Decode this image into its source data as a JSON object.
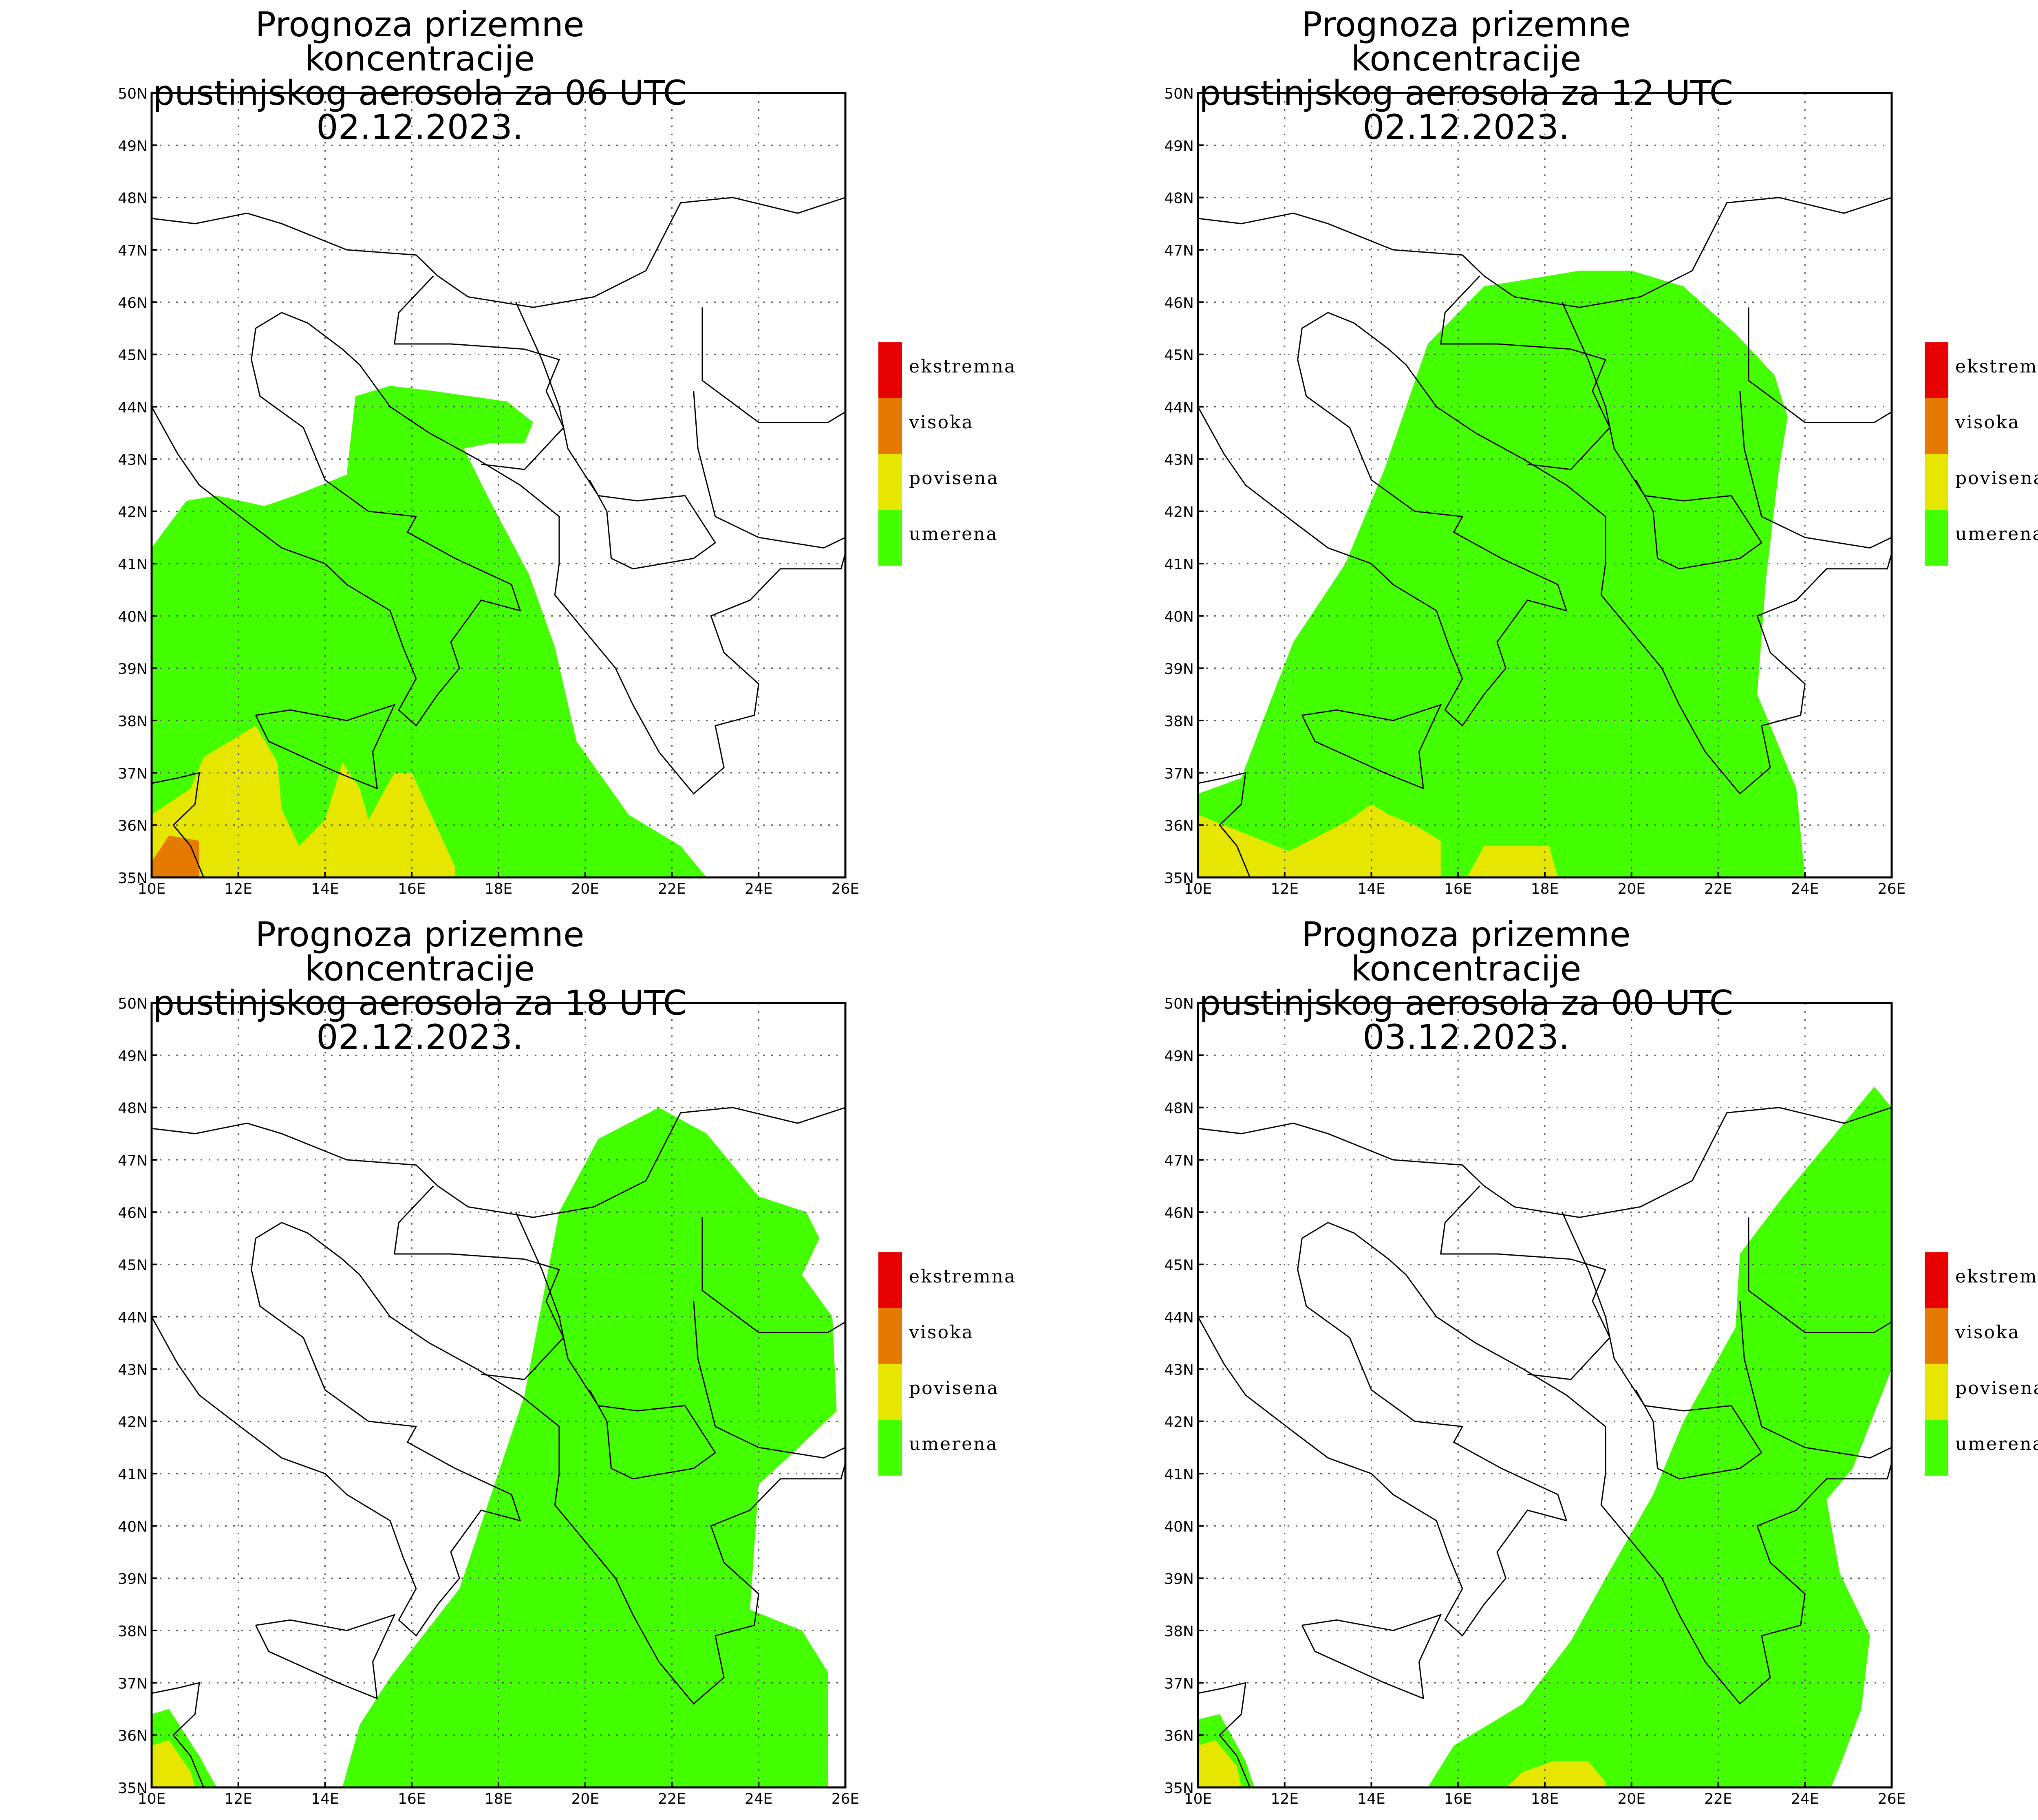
{
  "colors": {
    "ekstremna": "#e60000",
    "visoka": "#e67a00",
    "povisena": "#e6e600",
    "umerena": "#44ff00",
    "grid": "#555555",
    "border": "#000000"
  },
  "legend": [
    {
      "key": "ekstremna",
      "label": "ekstremna"
    },
    {
      "key": "visoka",
      "label": "visoka"
    },
    {
      "key": "povisena",
      "label": "povisena"
    },
    {
      "key": "umerena",
      "label": "umerena"
    }
  ],
  "axes": {
    "lat_labels": [
      "35N",
      "36N",
      "37N",
      "38N",
      "39N",
      "40N",
      "41N",
      "42N",
      "43N",
      "44N",
      "45N",
      "46N",
      "47N",
      "48N",
      "49N",
      "50N"
    ],
    "lon_labels": [
      "10E",
      "12E",
      "14E",
      "16E",
      "18E",
      "20E",
      "22E",
      "24E",
      "26E"
    ]
  },
  "panels": [
    {
      "id": "p06",
      "title_line1": "Prognoza prizemne koncentracije",
      "title_line2": "pustinjskog aerosola za 06 UTC 02.12.2023."
    },
    {
      "id": "p12",
      "title_line1": "Prognoza prizemne koncentracije",
      "title_line2": "pustinjskog aerosola za 12 UTC 02.12.2023."
    },
    {
      "id": "p18",
      "title_line1": "Prognoza prizemne koncentracije",
      "title_line2": "pustinjskog aerosola za 18 UTC 02.12.2023."
    },
    {
      "id": "p00",
      "title_line1": "Prognoza prizemne koncentracije",
      "title_line2": "pustinjskog aerosola za 00 UTC 03.12.2023."
    }
  ],
  "chart_data": {
    "type": "map",
    "lon_range": [
      10,
      26
    ],
    "lat_range": [
      35,
      50
    ],
    "regions": {
      "p06": [
        {
          "level": "umerena",
          "lonlat": [
            [
              10,
              41.3
            ],
            [
              10.8,
              42.2
            ],
            [
              11.5,
              42.3
            ],
            [
              12.6,
              42.1
            ],
            [
              13.3,
              42.3
            ],
            [
              14.5,
              42.7
            ],
            [
              14.7,
              44.2
            ],
            [
              15.5,
              44.4
            ],
            [
              16.5,
              44.3
            ],
            [
              18.2,
              44.1
            ],
            [
              18.8,
              43.7
            ],
            [
              18.6,
              43.3
            ],
            [
              17.8,
              43.3
            ],
            [
              17.2,
              43.2
            ],
            [
              17.8,
              42.2
            ],
            [
              18.7,
              40.8
            ],
            [
              19.3,
              39.4
            ],
            [
              19.8,
              37.6
            ],
            [
              21,
              36.2
            ],
            [
              22.2,
              35.6
            ],
            [
              22.8,
              35
            ]
          ]
        },
        {
          "level": "povisena",
          "lonlat": [
            [
              10,
              36.2
            ],
            [
              10.9,
              36.7
            ],
            [
              11.2,
              37.3
            ],
            [
              12.4,
              37.9
            ],
            [
              12.9,
              37.2
            ],
            [
              13,
              36.3
            ],
            [
              13.4,
              35.6
            ],
            [
              14,
              36.1
            ],
            [
              14.4,
              37.2
            ],
            [
              14.8,
              36.7
            ],
            [
              15,
              36.1
            ],
            [
              15.6,
              37
            ],
            [
              16,
              37
            ],
            [
              17,
              35.2
            ],
            [
              17,
              35
            ]
          ]
        },
        {
          "level": "visoka",
          "lonlat": [
            [
              10,
              35.3
            ],
            [
              10.4,
              35.8
            ],
            [
              11.1,
              35.7
            ],
            [
              11.1,
              35
            ]
          ]
        }
      ],
      "p12": [
        {
          "level": "umerena",
          "lonlat": [
            [
              10,
              36.6
            ],
            [
              11,
              36.9
            ],
            [
              11.5,
              38
            ],
            [
              12.2,
              39.5
            ],
            [
              13.4,
              41
            ],
            [
              14.3,
              42.8
            ],
            [
              15.3,
              45.2
            ],
            [
              16.6,
              46.3
            ],
            [
              18.8,
              46.6
            ],
            [
              20,
              46.6
            ],
            [
              21.2,
              46.3
            ],
            [
              22.4,
              45.4
            ],
            [
              23.3,
              44.6
            ],
            [
              23.6,
              43.8
            ],
            [
              23.4,
              42.8
            ],
            [
              23.1,
              40.7
            ],
            [
              22.9,
              38.5
            ],
            [
              23.8,
              36.7
            ],
            [
              24,
              35
            ]
          ]
        },
        {
          "level": "povisena",
          "lonlat": [
            [
              10,
              36.2
            ],
            [
              10.9,
              35.9
            ],
            [
              12.1,
              35.5
            ],
            [
              13.5,
              36.1
            ],
            [
              14,
              36.4
            ],
            [
              14.4,
              36.2
            ],
            [
              15,
              36
            ],
            [
              15.6,
              35.7
            ],
            [
              15.6,
              35
            ]
          ]
        },
        {
          "level": "povisena",
          "lonlat": [
            [
              16.2,
              35
            ],
            [
              16.6,
              35.6
            ],
            [
              18.1,
              35.6
            ],
            [
              18.3,
              35
            ]
          ]
        }
      ],
      "p18": [
        {
          "level": "umerena",
          "lonlat": [
            [
              10,
              36.4
            ],
            [
              10.4,
              36.5
            ],
            [
              11.1,
              35.6
            ],
            [
              11.5,
              35
            ]
          ]
        },
        {
          "level": "umerena",
          "lonlat": [
            [
              14.4,
              35
            ],
            [
              14.8,
              36.2
            ],
            [
              15.5,
              37.1
            ],
            [
              17.1,
              38.8
            ],
            [
              18.6,
              42.5
            ],
            [
              19.4,
              46
            ],
            [
              20.3,
              47.4
            ],
            [
              21.7,
              48
            ],
            [
              22.8,
              47.5
            ],
            [
              24,
              46.3
            ],
            [
              25.1,
              46
            ],
            [
              25.4,
              45.5
            ],
            [
              25,
              44.8
            ],
            [
              25.7,
              44
            ],
            [
              25.8,
              42.2
            ],
            [
              24.8,
              41.4
            ],
            [
              24,
              40.8
            ],
            [
              23.8,
              38.4
            ],
            [
              25,
              38
            ],
            [
              25.6,
              37.2
            ],
            [
              25.6,
              35
            ]
          ]
        },
        {
          "level": "povisena",
          "lonlat": [
            [
              10,
              35.8
            ],
            [
              10.4,
              35.9
            ],
            [
              10.9,
              35.3
            ],
            [
              11,
              35
            ]
          ]
        }
      ],
      "p00": [
        {
          "level": "umerena",
          "lonlat": [
            [
              10,
              36.3
            ],
            [
              10.5,
              36.4
            ],
            [
              11.1,
              35.5
            ],
            [
              11.3,
              35
            ]
          ]
        },
        {
          "level": "umerena",
          "lonlat": [
            [
              15.3,
              35
            ],
            [
              15.9,
              35.8
            ],
            [
              17.5,
              36.6
            ],
            [
              18.6,
              37.8
            ],
            [
              19.4,
              39
            ],
            [
              20.5,
              40.6
            ],
            [
              21.2,
              42
            ],
            [
              22.4,
              43.8
            ],
            [
              22.5,
              45.2
            ],
            [
              23.5,
              46.3
            ],
            [
              24.6,
              47.4
            ],
            [
              25.6,
              48.4
            ],
            [
              26,
              48
            ],
            [
              26,
              43
            ],
            [
              25.1,
              41.1
            ],
            [
              24.5,
              40.5
            ],
            [
              24.8,
              39.1
            ],
            [
              25.5,
              37.9
            ],
            [
              25.3,
              36.5
            ],
            [
              24.8,
              35.4
            ],
            [
              24.6,
              35
            ]
          ]
        },
        {
          "level": "povisena",
          "lonlat": [
            [
              10,
              35.8
            ],
            [
              10.4,
              35.9
            ],
            [
              10.9,
              35.4
            ],
            [
              11,
              35
            ]
          ]
        },
        {
          "level": "povisena",
          "lonlat": [
            [
              17.1,
              35
            ],
            [
              17.5,
              35.3
            ],
            [
              18.2,
              35.5
            ],
            [
              19,
              35.5
            ],
            [
              19.4,
              35.1
            ],
            [
              19.4,
              35
            ]
          ]
        }
      ]
    }
  }
}
